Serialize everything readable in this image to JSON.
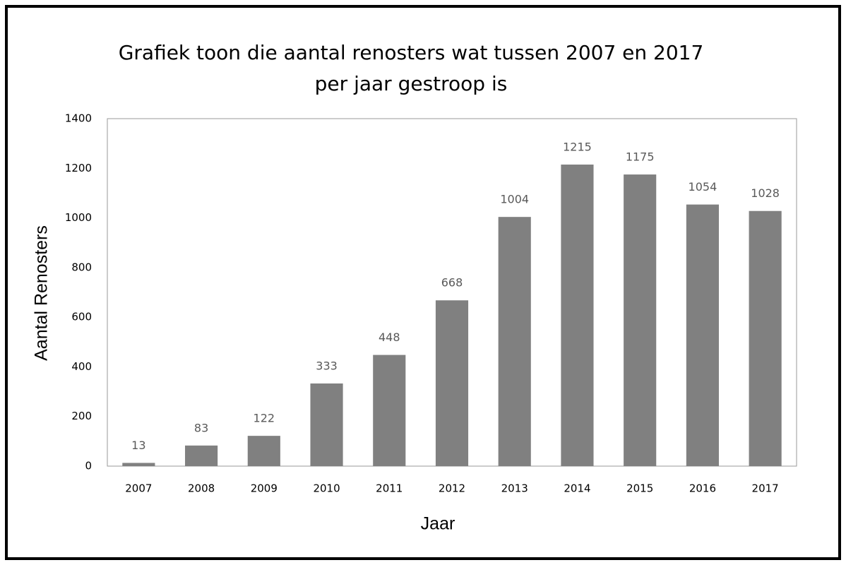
{
  "chart_data": {
    "type": "bar",
    "title": [
      "Grafiek toon die aantal renosters wat tussen 2007 en 2017",
      "per jaar gestroop is"
    ],
    "x_label": "Jaar",
    "y_label": "Aantal Renosters",
    "categories": [
      "2007",
      "2008",
      "2009",
      "2010",
      "2011",
      "2012",
      "2013",
      "2014",
      "2015",
      "2016",
      "2017"
    ],
    "values": [
      13,
      83,
      122,
      333,
      448,
      668,
      1004,
      1215,
      1175,
      1054,
      1028
    ],
    "color": "#808080",
    "ylim": [
      0,
      1400
    ],
    "yticks": [
      0,
      200,
      400,
      600,
      800,
      1000,
      1200,
      1400
    ],
    "grid": false
  }
}
